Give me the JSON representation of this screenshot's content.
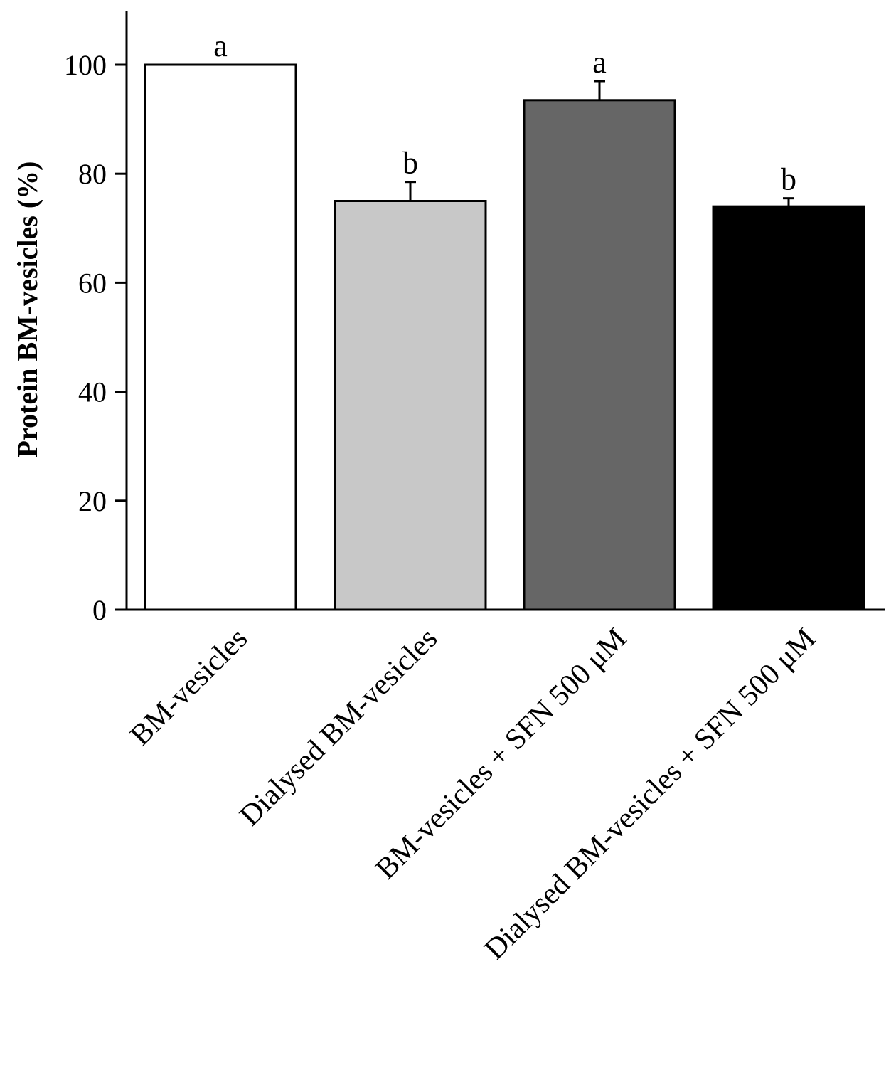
{
  "chart_data": {
    "type": "bar",
    "categories": [
      "BM-vesicles",
      "Dialysed BM-vesicles",
      "BM-vesicles + SFN 500  μM",
      "Dialysed BM-vesicles  + SFN 500  μM"
    ],
    "values": [
      100,
      75,
      93.5,
      74
    ],
    "errors": [
      0,
      3.5,
      3.5,
      1.5
    ],
    "significance_letters": [
      "a",
      "b",
      "a",
      "b"
    ],
    "bar_colors": [
      "#ffffff",
      "#c8c8c8",
      "#666666",
      "#000000"
    ],
    "ylabel": "Protein BM-vesicles (%)",
    "xlabel": "",
    "ylim": [
      0,
      110
    ],
    "yticks": [
      "0",
      "20",
      "40",
      "60",
      "80",
      "100"
    ],
    "grid": false
  }
}
